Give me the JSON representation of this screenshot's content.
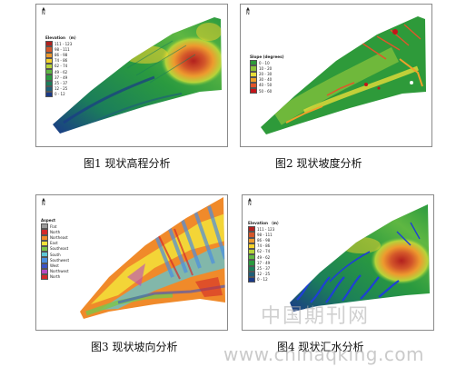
{
  "figures": [
    {
      "caption": "图1 现状高程分析",
      "north": "N",
      "legend": {
        "title": "Elevation （m）",
        "entries": [
          {
            "label": "111 - 123",
            "color": "#b2201e"
          },
          {
            "label": "98 - 111",
            "color": "#d4572a"
          },
          {
            "label": "86 - 98",
            "color": "#ed9a2e"
          },
          {
            "label": "74 - 86",
            "color": "#f4d22b"
          },
          {
            "label": "62 - 74",
            "color": "#b6d43a"
          },
          {
            "label": "49 - 62",
            "color": "#5fb742"
          },
          {
            "label": "37 - 49",
            "color": "#2a9a3f"
          },
          {
            "label": "25 - 37",
            "color": "#1b7e5a"
          },
          {
            "label": "12 - 25",
            "color": "#1f5f78"
          },
          {
            "label": "0 - 12",
            "color": "#1a3a88"
          }
        ]
      }
    },
    {
      "caption": "图2 现状坡度分析",
      "north": "N",
      "legend": {
        "title": "Slope (degrees)",
        "entries": [
          {
            "label": "0 - 10",
            "color": "#2e9a3a"
          },
          {
            "label": "10 - 20",
            "color": "#8cc43c"
          },
          {
            "label": "20 - 30",
            "color": "#e6dc3a"
          },
          {
            "label": "30 - 40",
            "color": "#f0a02a"
          },
          {
            "label": "40 - 50",
            "color": "#e2552a"
          },
          {
            "label": "50 - 60",
            "color": "#c4141a"
          }
        ]
      }
    },
    {
      "caption": "图3 现状坡向分析",
      "north": "N",
      "legend": {
        "title": "Aspect",
        "entries": [
          {
            "label": "Flat",
            "color": "#9a9a9a"
          },
          {
            "label": "North",
            "color": "#d42a2a"
          },
          {
            "label": "Northeast",
            "color": "#f08a2a"
          },
          {
            "label": "East",
            "color": "#f3e23a"
          },
          {
            "label": "Southeast",
            "color": "#7cc44a"
          },
          {
            "label": "South",
            "color": "#5ec6d6"
          },
          {
            "label": "Southwest",
            "color": "#4a8ee0"
          },
          {
            "label": "West",
            "color": "#3a52c4"
          },
          {
            "label": "Northwest",
            "color": "#b64ac4"
          },
          {
            "label": "North",
            "color": "#d42a2a"
          }
        ]
      }
    },
    {
      "caption": "图4 现状汇水分析",
      "north": "N",
      "legend": {
        "title": "Elevation （m）",
        "entries": [
          {
            "label": "111 - 123",
            "color": "#b2201e"
          },
          {
            "label": "98 - 111",
            "color": "#d4572a"
          },
          {
            "label": "86 - 98",
            "color": "#ed9a2e"
          },
          {
            "label": "74 - 86",
            "color": "#f4d22b"
          },
          {
            "label": "62 - 74",
            "color": "#b6d43a"
          },
          {
            "label": "49 - 62",
            "color": "#5fb742"
          },
          {
            "label": "37 - 49",
            "color": "#2a9a3f"
          },
          {
            "label": "25 - 37",
            "color": "#1b7e5a"
          },
          {
            "label": "12 - 25",
            "color": "#1f5f78"
          },
          {
            "label": "0 - 12",
            "color": "#1a3a88"
          }
        ]
      }
    }
  ],
  "watermark": {
    "cn": "中国期刊网",
    "url": "www.chinaqking.com"
  }
}
